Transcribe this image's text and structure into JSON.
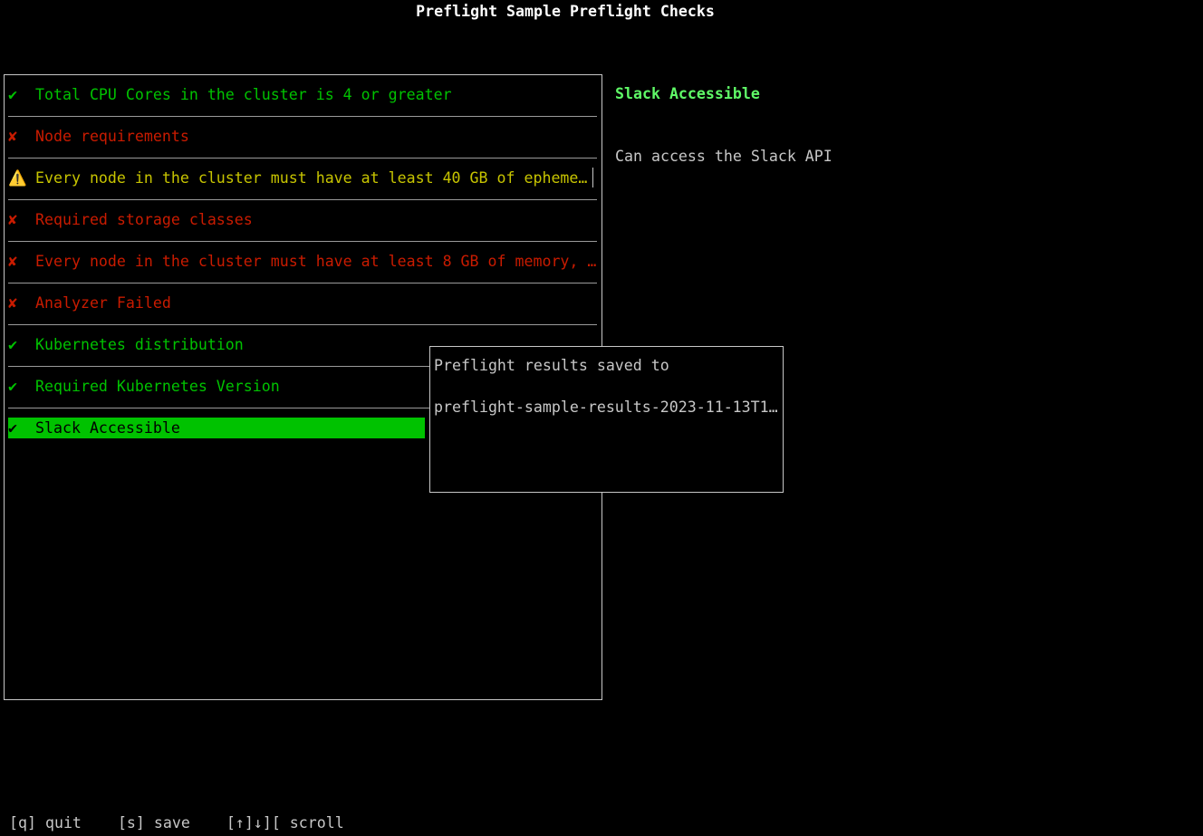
{
  "title": "Preflight Sample Preflight Checks",
  "colors": {
    "pass": "#00c200",
    "fail": "#c91b00",
    "warn": "#c7c400",
    "detail_title": "#5ff967"
  },
  "checks": [
    {
      "status": "pass",
      "icon": "✔",
      "label": "Total CPU Cores in the cluster is 4 or greater"
    },
    {
      "status": "fail",
      "icon": "✘",
      "label": "Node requirements"
    },
    {
      "status": "warn",
      "icon": "⚠️",
      "label": "Every node in the cluster must have at least 40 GB of epheme…"
    },
    {
      "status": "fail",
      "icon": "✘",
      "label": "Required storage classes"
    },
    {
      "status": "fail",
      "icon": "✘",
      "label": "Every node in the cluster must have at least 8 GB of memory, …"
    },
    {
      "status": "fail",
      "icon": "✘",
      "label": "Analyzer Failed"
    },
    {
      "status": "pass",
      "icon": "✔",
      "label": "Kubernetes distribution"
    },
    {
      "status": "pass",
      "icon": "✔",
      "label": "Required Kubernetes Version"
    },
    {
      "status": "pass",
      "icon": "✔",
      "label": "Slack Accessible",
      "selected": true
    }
  ],
  "detail": {
    "title": "Slack Accessible",
    "message": "Can access the Slack API"
  },
  "popup": {
    "line1": "Preflight results saved to",
    "line2": "preflight-sample-results-2023-11-13T1…"
  },
  "footer": {
    "quit": "[q] quit",
    "save": "[s] save",
    "scroll": "[↑]↓][ scroll"
  }
}
